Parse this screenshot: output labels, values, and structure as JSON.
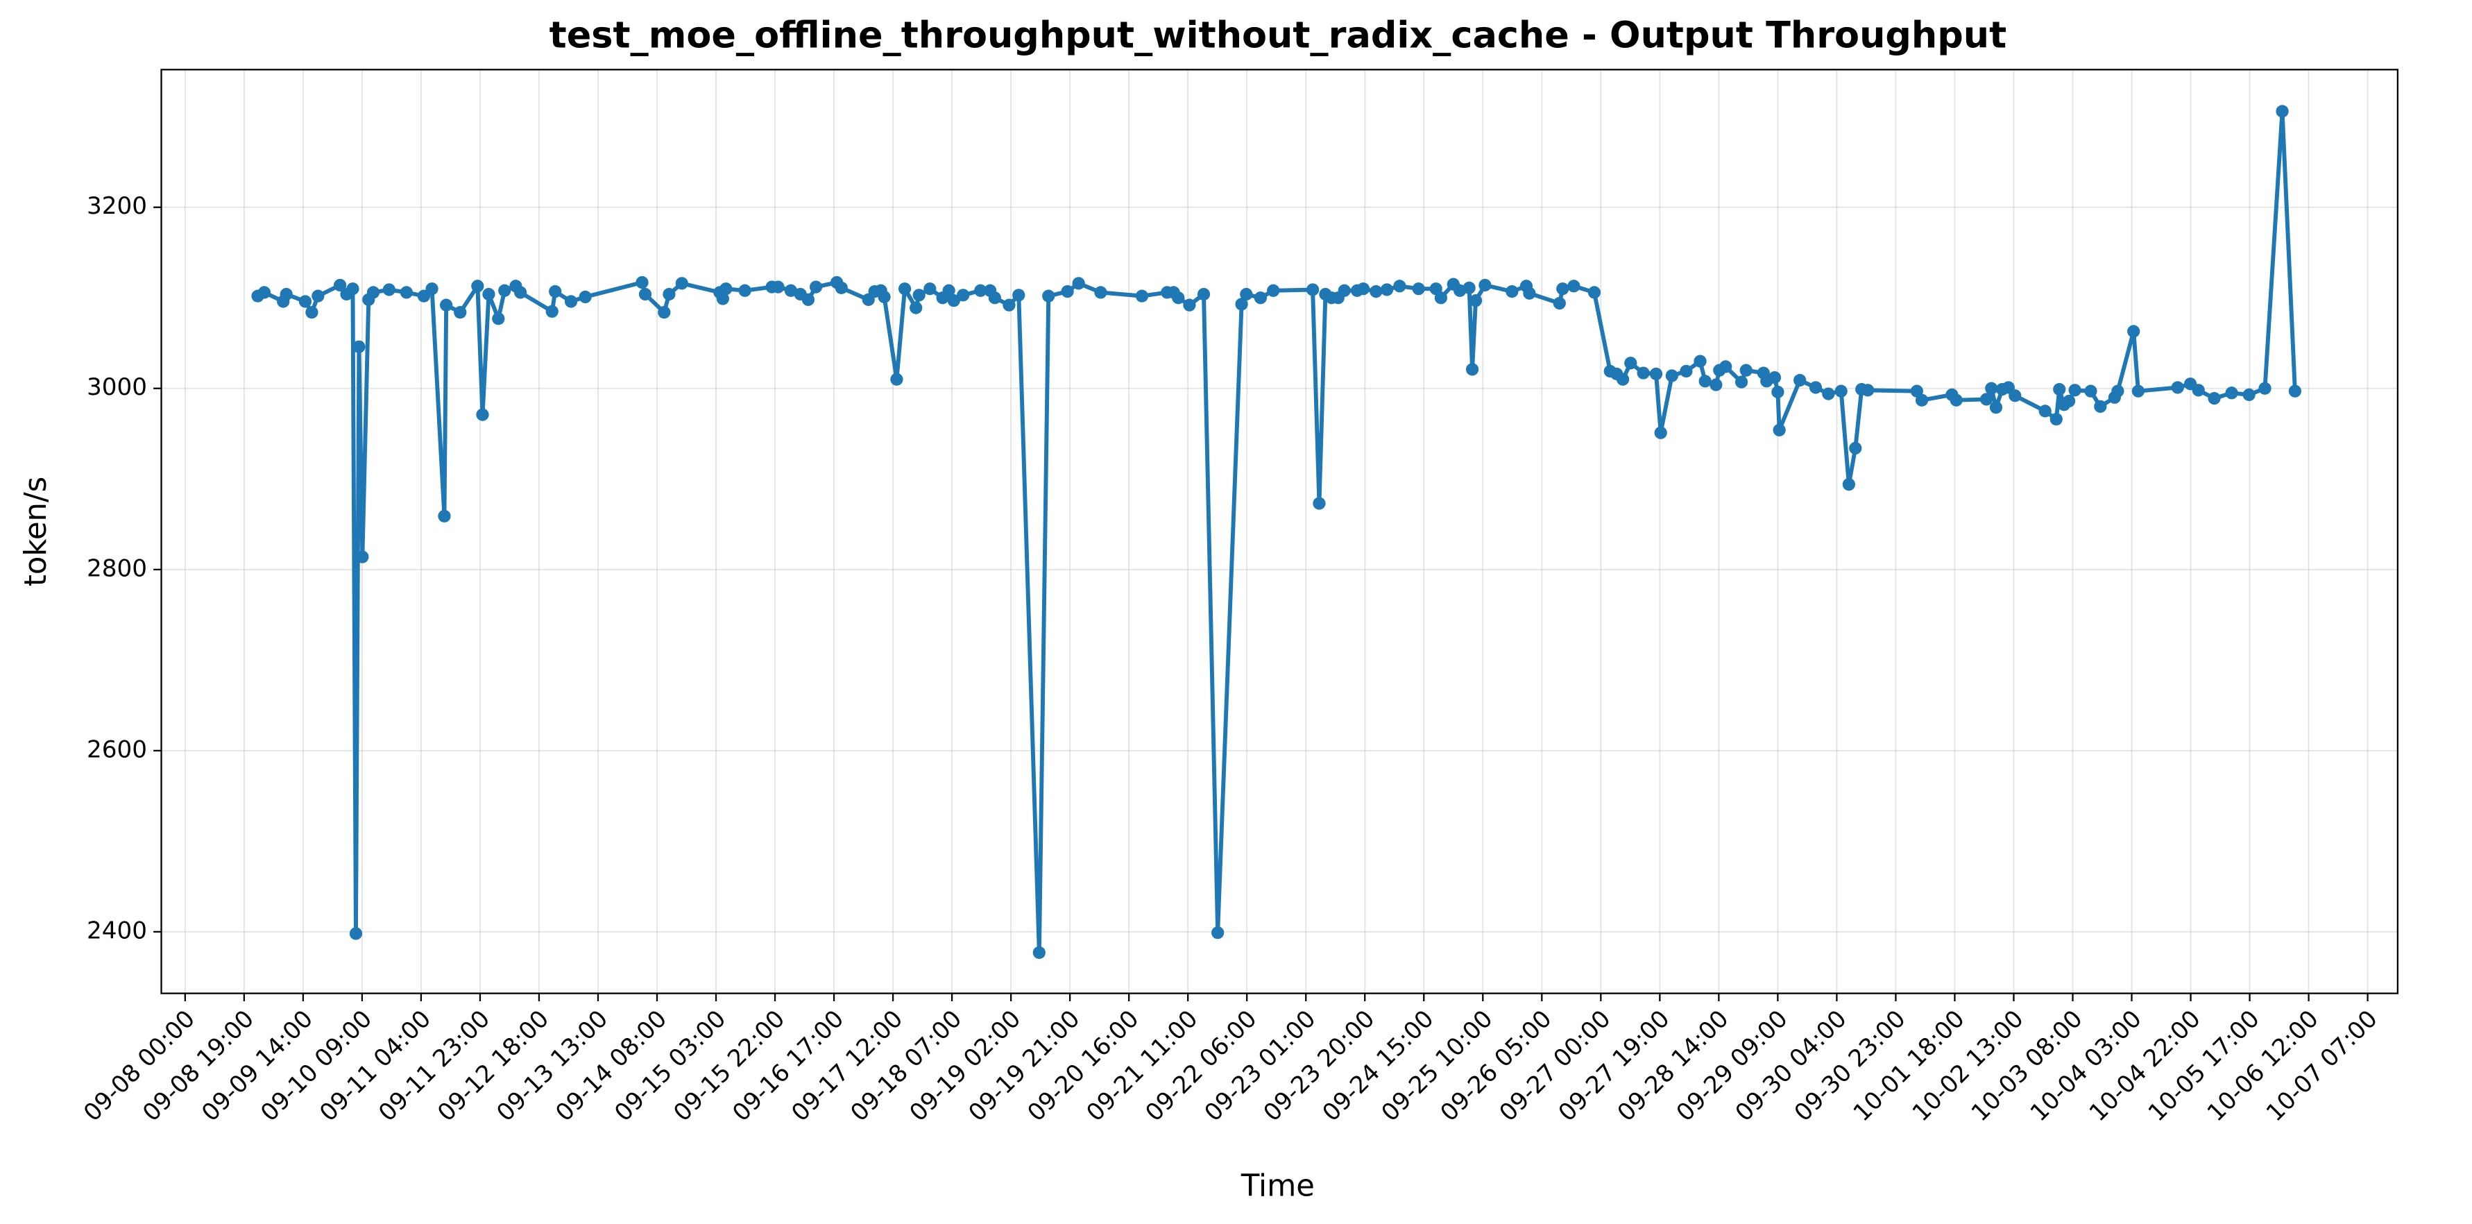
{
  "chart_data": {
    "type": "line",
    "title": "test_moe_offline_throughput_without_radix_cache - Output Throughput",
    "xlabel": "Time",
    "ylabel": "token/s",
    "color": "#1f77b4",
    "grid": true,
    "xlim": [
      "09-07 16:20",
      "10-07 16:40"
    ],
    "xticks": [
      "09-08 00:00",
      "09-08 19:00",
      "09-09 14:00",
      "09-10 09:00",
      "09-11 04:00",
      "09-11 23:00",
      "09-12 18:00",
      "09-13 13:00",
      "09-14 08:00",
      "09-15 03:00",
      "09-15 22:00",
      "09-16 17:00",
      "09-17 12:00",
      "09-18 07:00",
      "09-19 02:00",
      "09-19 21:00",
      "09-20 16:00",
      "09-21 11:00",
      "09-22 06:00",
      "09-23 01:00",
      "09-23 20:00",
      "09-24 15:00",
      "09-25 10:00",
      "09-26 05:00",
      "09-27 00:00",
      "09-27 19:00",
      "09-28 14:00",
      "09-29 09:00",
      "09-30 04:00",
      "09-30 23:00",
      "10-01 18:00",
      "10-02 13:00",
      "10-03 08:00",
      "10-04 03:00",
      "10-04 22:00",
      "10-05 17:00",
      "10-06 12:00",
      "10-07 07:00"
    ],
    "ylim": [
      2332,
      3352
    ],
    "yticks": [
      2400,
      2600,
      2800,
      3000,
      3200
    ],
    "x": [
      "09-08 23:24",
      "09-09 01:30",
      "09-09 07:36",
      "09-09 08:36",
      "09-09 14:42",
      "09-09 16:48",
      "09-09 18:48",
      "09-10 01:54",
      "09-10 04:00",
      "09-10 06:00",
      "09-10 07:00",
      "09-10 08:00",
      "09-10 09:06",
      "09-10 11:06",
      "09-10 12:36",
      "09-10 17:42",
      "09-10 23:18",
      "09-11 04:54",
      "09-11 07:30",
      "09-11 11:30",
      "09-11 12:06",
      "09-11 16:36",
      "09-11 22:12",
      "09-11 23:48",
      "09-12 01:48",
      "09-12 04:54",
      "09-12 06:54",
      "09-12 10:30",
      "09-12 12:00",
      "09-12 22:12",
      "09-12 23:12",
      "09-13 04:18",
      "09-13 08:54",
      "09-14 03:12",
      "09-14 04:12",
      "09-14 10:18",
      "09-14 11:54",
      "09-14 16:00",
      "09-15 04:12",
      "09-15 05:12",
      "09-15 06:12",
      "09-15 12:18",
      "09-15 21:00",
      "09-15 23:00",
      "09-16 03:06",
      "09-16 06:12",
      "09-16 08:42",
      "09-16 11:12",
      "09-16 17:54",
      "09-16 19:24",
      "09-17 04:06",
      "09-17 06:06",
      "09-17 08:06",
      "09-17 09:12",
      "09-17 13:12",
      "09-17 15:48",
      "09-17 19:24",
      "09-17 20:24",
      "09-17 23:54",
      "09-18 04:00",
      "09-18 06:00",
      "09-18 07:36",
      "09-18 10:36",
      "09-18 16:12",
      "09-18 19:18",
      "09-18 20:48",
      "09-19 01:24",
      "09-19 04:30",
      "09-19 11:06",
      "09-19 14:06",
      "09-19 20:12",
      "09-19 23:48",
      "09-20 06:54",
      "09-20 20:12",
      "09-21 04:18",
      "09-21 06:24",
      "09-21 07:54",
      "09-21 11:30",
      "09-21 16:06",
      "09-21 20:36",
      "09-22 04:18",
      "09-22 05:48",
      "09-22 10:24",
      "09-22 14:30",
      "09-23 03:12",
      "09-23 05:18",
      "09-23 07:18",
      "09-23 09:18",
      "09-23 11:24",
      "09-23 13:24",
      "09-23 17:30",
      "09-23 19:30",
      "09-23 23:36",
      "09-24 03:06",
      "09-24 07:12",
      "09-24 13:18",
      "09-24 18:54",
      "09-24 20:30",
      "09-25 00:30",
      "09-25 02:36",
      "09-25 05:36",
      "09-25 06:36",
      "09-25 07:42",
      "09-25 10:42",
      "09-25 19:24",
      "09-26 00:00",
      "09-26 01:00",
      "09-26 10:42",
      "09-26 11:42",
      "09-26 15:18",
      "09-26 21:54",
      "09-27 03:00",
      "09-27 05:06",
      "09-27 07:06",
      "09-27 09:36",
      "09-27 13:42",
      "09-27 17:48",
      "09-27 19:18",
      "09-27 22:54",
      "09-28 03:30",
      "09-28 08:00",
      "09-28 09:36",
      "09-28 13:06",
      "09-28 14:12",
      "09-28 16:12",
      "09-28 21:18",
      "09-28 22:48",
      "09-29 04:24",
      "09-29 05:24",
      "09-29 08:00",
      "09-29 09:00",
      "09-29 09:30",
      "09-29 16:06",
      "09-29 21:12",
      "09-30 01:18",
      "09-30 05:24",
      "09-30 07:54",
      "09-30 10:00",
      "09-30 12:00",
      "09-30 14:00",
      "10-01 05:48",
      "10-01 07:24",
      "10-01 17:06",
      "10-01 18:30",
      "10-02 04:12",
      "10-02 05:48",
      "10-02 07:18",
      "10-02 09:18",
      "10-02 11:18",
      "10-02 13:24",
      "10-02 23:06",
      "10-03 02:42",
      "10-03 03:42",
      "10-03 05:12",
      "10-03 06:48",
      "10-03 08:42",
      "10-03 13:48",
      "10-03 16:54",
      "10-03 21:30",
      "10-03 22:30",
      "10-04 03:36",
      "10-04 05:06",
      "10-04 17:48",
      "10-04 21:54",
      "10-05 00:30",
      "10-05 05:36",
      "10-05 11:12",
      "10-05 16:48",
      "10-05 21:54",
      "10-06 03:30",
      "10-06 07:36"
    ],
    "values": [
      3102,
      3106,
      3096,
      3104,
      3096,
      3084,
      3102,
      3114,
      3104,
      3110,
      2398,
      3046,
      2814,
      3098,
      3106,
      3109,
      3106,
      3102,
      3110,
      2859,
      3092,
      3084,
      3113,
      2971,
      3104,
      3077,
      3108,
      3113,
      3106,
      3085,
      3107,
      3096,
      3101,
      3117,
      3104,
      3084,
      3104,
      3116,
      3106,
      3099,
      3110,
      3108,
      3112,
      3112,
      3108,
      3104,
      3098,
      3112,
      3117,
      3111,
      3098,
      3107,
      3108,
      3101,
      3010,
      3110,
      3089,
      3103,
      3110,
      3100,
      3108,
      3097,
      3103,
      3108,
      3108,
      3100,
      3092,
      3103,
      2377,
      3102,
      3107,
      3116,
      3106,
      3102,
      3106,
      3106,
      3100,
      3092,
      3104,
      2399,
      3093,
      3104,
      3100,
      3108,
      3109,
      2873,
      3104,
      3100,
      3100,
      3108,
      3108,
      3110,
      3107,
      3109,
      3113,
      3110,
      3110,
      3100,
      3115,
      3108,
      3111,
      3021,
      3097,
      3114,
      3107,
      3113,
      3105,
      3094,
      3110,
      3113,
      3106,
      3019,
      3016,
      3010,
      3028,
      3017,
      3016,
      2951,
      3014,
      3019,
      3030,
      3008,
      3004,
      3020,
      3024,
      3007,
      3020,
      3017,
      3008,
      3012,
      2996,
      2954,
      3009,
      3001,
      2994,
      2997,
      2894,
      2934,
      2999,
      2998,
      2997,
      2987,
      2993,
      2987,
      2988,
      3000,
      2979,
      2999,
      3001,
      2992,
      2975,
      2966,
      2999,
      2982,
      2986,
      2998,
      2997,
      2980,
      2990,
      2997,
      3063,
      2997,
      3001,
      3005,
      2998,
      2989,
      2995,
      2993,
      3000,
      3306,
      2997
    ]
  }
}
